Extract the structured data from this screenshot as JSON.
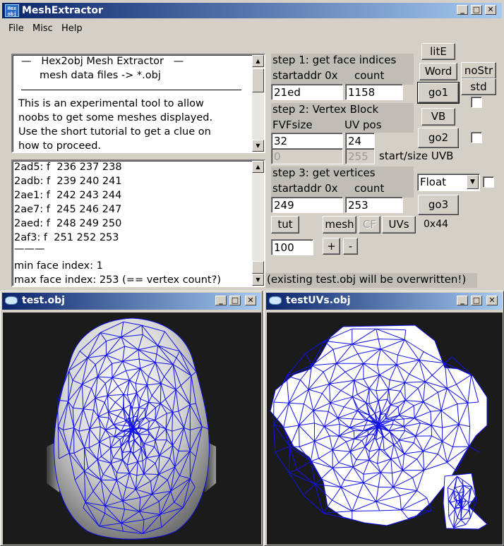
{
  "app": {
    "title": "MeshExtractor",
    "icon_text": [
      "Hex",
      "obj"
    ],
    "menu": [
      "File",
      "Misc",
      "Help"
    ]
  },
  "info_text": [
    "—   Hex2obj Mesh Extractor   —",
    "mesh data files -> *.obj",
    "This is an experimental tool to allow",
    "noobs to get some meshes displayed.",
    "Use the short tutorial to get a clue on",
    "how to proceed."
  ],
  "log_lines": [
    "2ad5: f  236 237 238",
    "2adb: f  239 240 241",
    "2ae1: f  242 243 244",
    "2ae7: f  245 246 247",
    "2aed: f  248 249 250",
    "2af3: f  251 252 253",
    "———",
    "min face index: 1",
    "max face index: 253 (== vertex count?)"
  ],
  "step1": {
    "title": "step 1: get face indices",
    "addr_label": "startaddr 0x",
    "count_label": "count",
    "addr_value": "21ed",
    "count_value": "1158",
    "go_label": "go1"
  },
  "step2": {
    "title": "step 2: Vertex Block",
    "fvf_label": "FVFsize",
    "uv_label": "UV pos",
    "fvf_value": "32",
    "uv_value": "24",
    "uvb_start": "0",
    "uvb_size": "255",
    "uvb_label": "start/size UVB",
    "go_label": "go2"
  },
  "step3": {
    "title": "step 3: get vertices",
    "addr_label": "startaddr 0x",
    "count_label": "count",
    "addr_value": "249",
    "count_value": "253",
    "go_label": "go3",
    "type_value": "Float"
  },
  "buttons": {
    "lite": "litE",
    "word": "Word",
    "nostr": "noStr",
    "std": "std",
    "vb": "VB",
    "tut": "tut",
    "mesh": "mesh",
    "cf": "CF",
    "uvs": "UVs",
    "plus": "+",
    "minus": "-"
  },
  "hex_readout": "0x44",
  "zoom_value": "100",
  "overwrite_note": "(existing test.obj will be overwritten!)",
  "windows": {
    "mesh": "test.obj",
    "uvs": "testUVs.obj"
  },
  "colors": {
    "titlebar_start": "#0a246a",
    "titlebar_end": "#a6caf0",
    "wireframe": "#1010e8",
    "viewport_bg": "#1b1b1b"
  }
}
